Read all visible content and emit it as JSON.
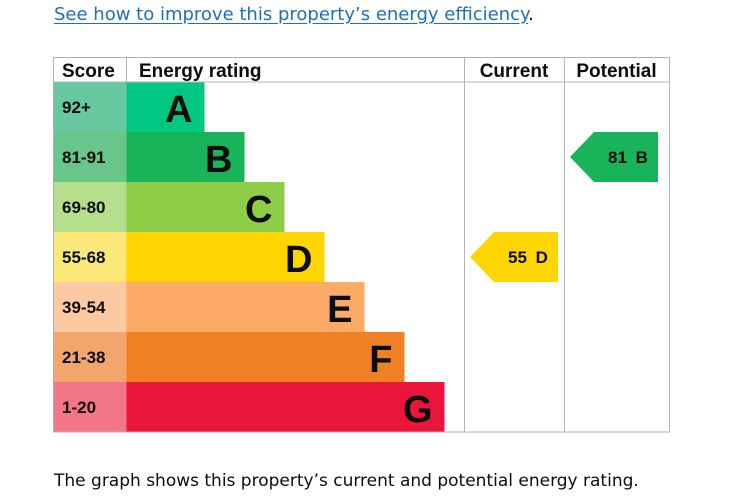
{
  "link": {
    "text": "See how to improve this property’s energy efficiency",
    "suffix": "."
  },
  "caption": "The graph shows this property’s current and potential energy rating.",
  "chart_data": {
    "type": "bar",
    "headers": {
      "score": "Score",
      "rating": "Energy rating",
      "current": "Current",
      "potential": "Potential"
    },
    "bands": [
      {
        "score": "92+",
        "letter": "A",
        "color": "#008054",
        "score_color": "#68c9a0",
        "bar_color": "#00c781"
      },
      {
        "score": "81-91",
        "letter": "B",
        "color": "#19b459",
        "score_color": "#69c68a",
        "bar_color": "#19b459"
      },
      {
        "score": "69-80",
        "letter": "C",
        "color": "#8dce46",
        "score_color": "#b6df8c",
        "bar_color": "#8dce46"
      },
      {
        "score": "55-68",
        "letter": "D",
        "color": "#ffd500",
        "score_color": "#fbe879",
        "bar_color": "#ffd500"
      },
      {
        "score": "39-54",
        "letter": "E",
        "color": "#fcaa65",
        "score_color": "#fdc9a0",
        "bar_color": "#fcaa65"
      },
      {
        "score": "21-38",
        "letter": "F",
        "color": "#ef8023",
        "score_color": "#f3a66b",
        "bar_color": "#ef8023"
      },
      {
        "score": "1-20",
        "letter": "G",
        "color": "#e9153b",
        "score_color": "#f27588",
        "bar_color": "#e9153b"
      }
    ],
    "current": {
      "value": 55,
      "letter": "D",
      "label": "55 D",
      "color": "#ffd500"
    },
    "potential": {
      "value": 81,
      "letter": "B",
      "label": "81 B",
      "color": "#19b459"
    }
  }
}
